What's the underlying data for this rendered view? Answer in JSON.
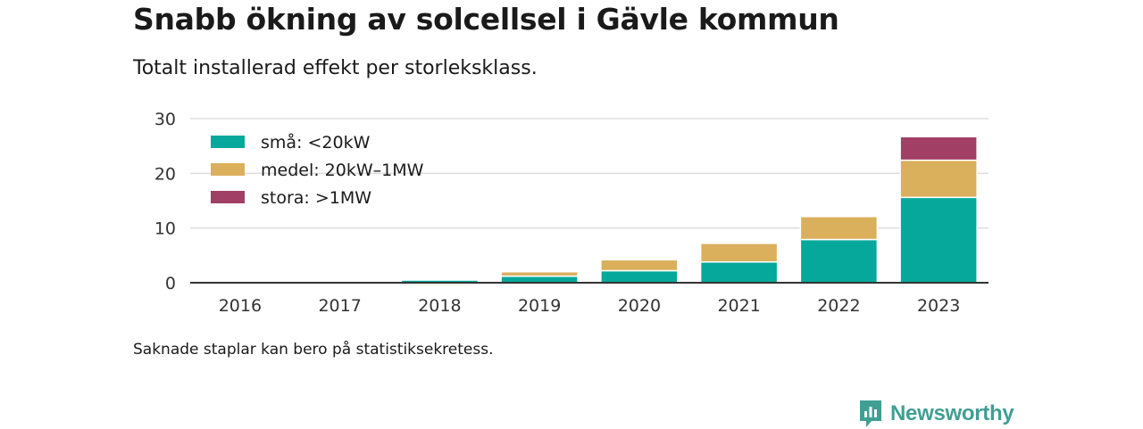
{
  "title": "Snabb ökning av solcellsel i Gävle kommun",
  "subtitle": "Totalt installerad effekt per storleksklass.",
  "note": "Saknade staplar kan bero på statistiksekretess.",
  "brand": "Newsworthy",
  "colors": {
    "small": "#05a89a",
    "medium": "#dbb05c",
    "large": "#a23f65",
    "grid": "#dddddd",
    "axis": "#333333",
    "brand": "#3f9f93"
  },
  "chart_data": {
    "type": "bar",
    "stacked": true,
    "categories": [
      "2016",
      "2017",
      "2018",
      "2019",
      "2020",
      "2021",
      "2022",
      "2023"
    ],
    "series": [
      {
        "name": "små: <20kW",
        "color": "#05a89a",
        "values": [
          0.1,
          0.2,
          0.5,
          1.2,
          2.2,
          3.8,
          7.9,
          15.6
        ]
      },
      {
        "name": "medel: 20kW–1MW",
        "color": "#dbb05c",
        "values": [
          0,
          0,
          0.2,
          0.8,
          2.0,
          3.4,
          4.2,
          6.8
        ]
      },
      {
        "name": "stora: >1MW",
        "color": "#a23f65",
        "values": [
          0,
          0,
          0,
          0,
          0,
          0,
          0,
          4.3
        ]
      }
    ],
    "ylim": [
      0,
      30
    ],
    "yticks": [
      0,
      10,
      20,
      30
    ],
    "grid": true,
    "legend": "top-left",
    "xlabel": "",
    "ylabel": ""
  }
}
